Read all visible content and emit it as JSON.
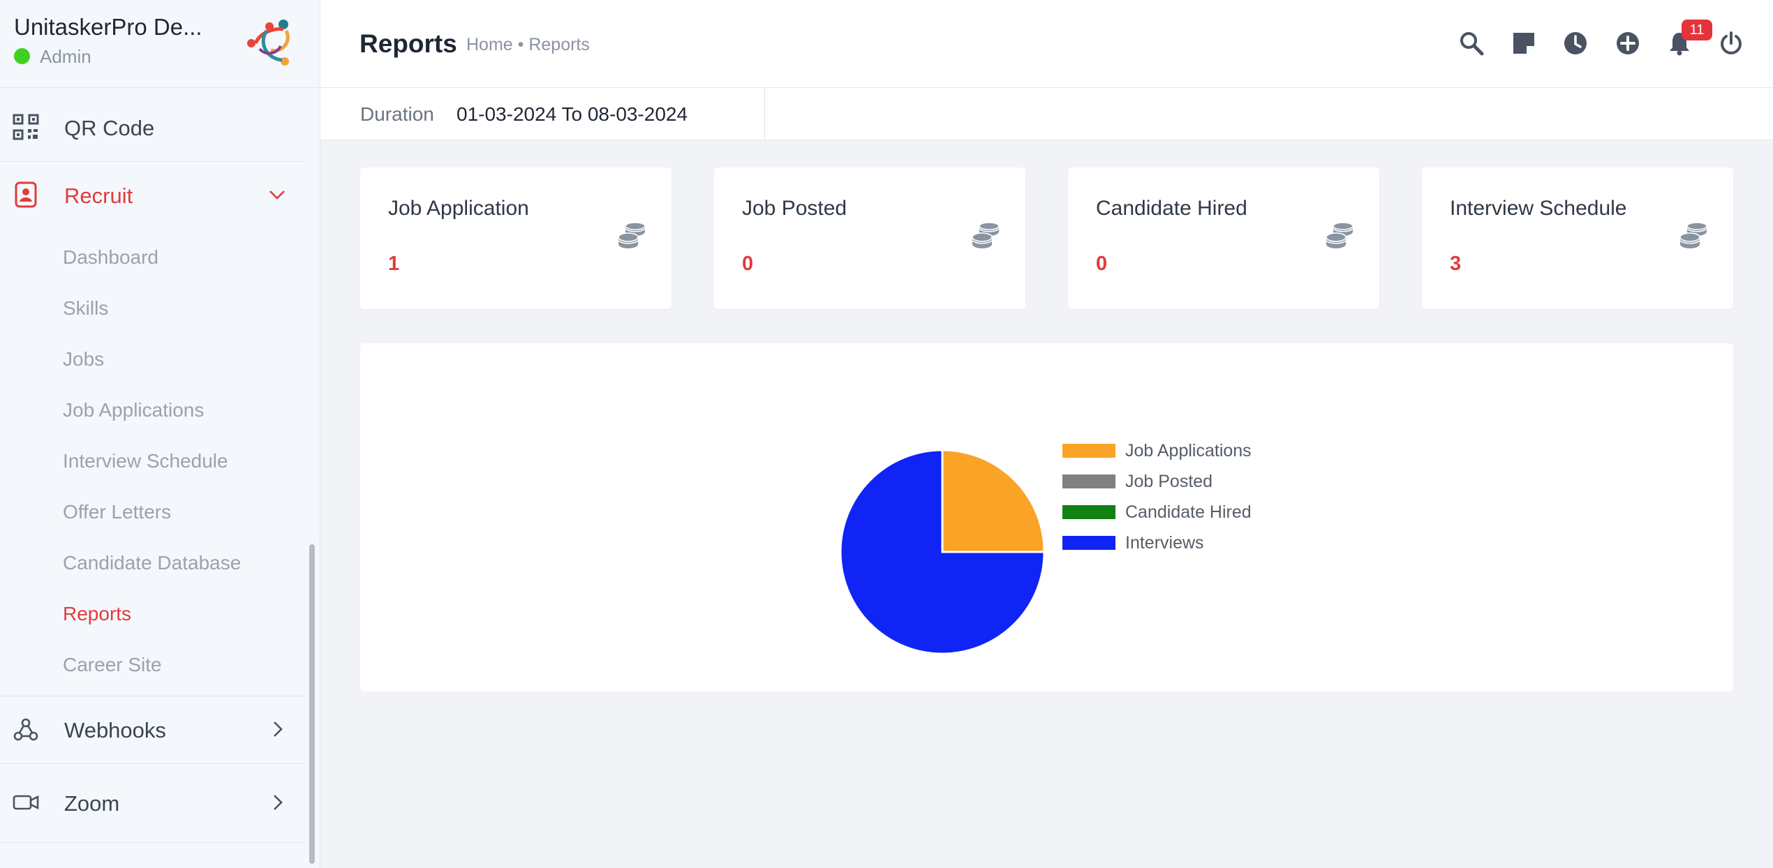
{
  "brand": {
    "name": "UnitaskerPro De...",
    "role": "Admin"
  },
  "sidebar": {
    "qr": {
      "label": "QR Code",
      "icon": "qr-code-icon"
    },
    "recruit": {
      "label": "Recruit",
      "icon": "contact-card-icon",
      "items": [
        {
          "label": "Dashboard"
        },
        {
          "label": "Skills"
        },
        {
          "label": "Jobs"
        },
        {
          "label": "Job Applications"
        },
        {
          "label": "Interview Schedule"
        },
        {
          "label": "Offer Letters"
        },
        {
          "label": "Candidate Database"
        },
        {
          "label": "Reports",
          "active": true
        },
        {
          "label": "Career Site"
        }
      ]
    },
    "webhooks": {
      "label": "Webhooks",
      "icon": "webhook-icon"
    },
    "zoom": {
      "label": "Zoom",
      "icon": "video-camera-icon"
    }
  },
  "header": {
    "title": "Reports",
    "breadcrumb": [
      "Home",
      "Reports"
    ],
    "notifications": "11",
    "icons": [
      "search-icon",
      "sticky-note-icon",
      "clock-icon",
      "add-circle-icon",
      "bell-icon",
      "power-icon"
    ]
  },
  "duration": {
    "label": "Duration",
    "value": "01-03-2024 To 08-03-2024"
  },
  "cards": [
    {
      "title": "Job Application",
      "value": "1"
    },
    {
      "title": "Job Posted",
      "value": "0"
    },
    {
      "title": "Candidate Hired",
      "value": "0"
    },
    {
      "title": "Interview Schedule",
      "value": "3"
    }
  ],
  "colors": {
    "accent": "#e33a3a",
    "active_status": "#3ed11f",
    "badge": "#e5333c"
  },
  "chart_data": {
    "type": "pie",
    "categories": [
      "Job Applications",
      "Job Posted",
      "Candidate Hired",
      "Interviews"
    ],
    "values": [
      1,
      0,
      0,
      3
    ],
    "colors": [
      "#f9a427",
      "#808080",
      "#128012",
      "#0f24f5"
    ],
    "legend": "right"
  }
}
